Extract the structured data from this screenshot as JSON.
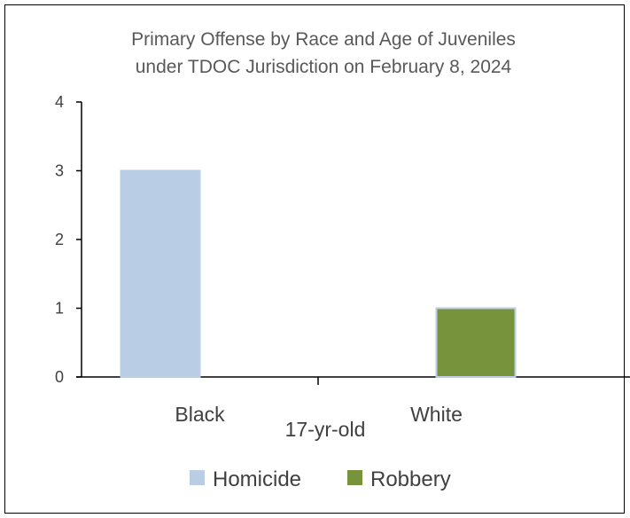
{
  "chart_data": {
    "type": "bar",
    "title_lines": [
      "Primary Offense by Race and Age of Juveniles",
      "under TDOC Jurisdiction on February 8, 2024"
    ],
    "categories": [
      "Black",
      "White"
    ],
    "group_label": "17-yr-old",
    "series": [
      {
        "name": "Homicide",
        "values": [
          3,
          0
        ],
        "color": "#b9cde5",
        "stroke": "#b9cde5"
      },
      {
        "name": "Robbery",
        "values": [
          0,
          1
        ],
        "color": "#77933c",
        "stroke": "#b9cde5"
      }
    ],
    "yticks": [
      0,
      1,
      2,
      3,
      4
    ],
    "ylim": [
      0,
      4
    ],
    "legend_position": "bottom",
    "grid": false
  }
}
